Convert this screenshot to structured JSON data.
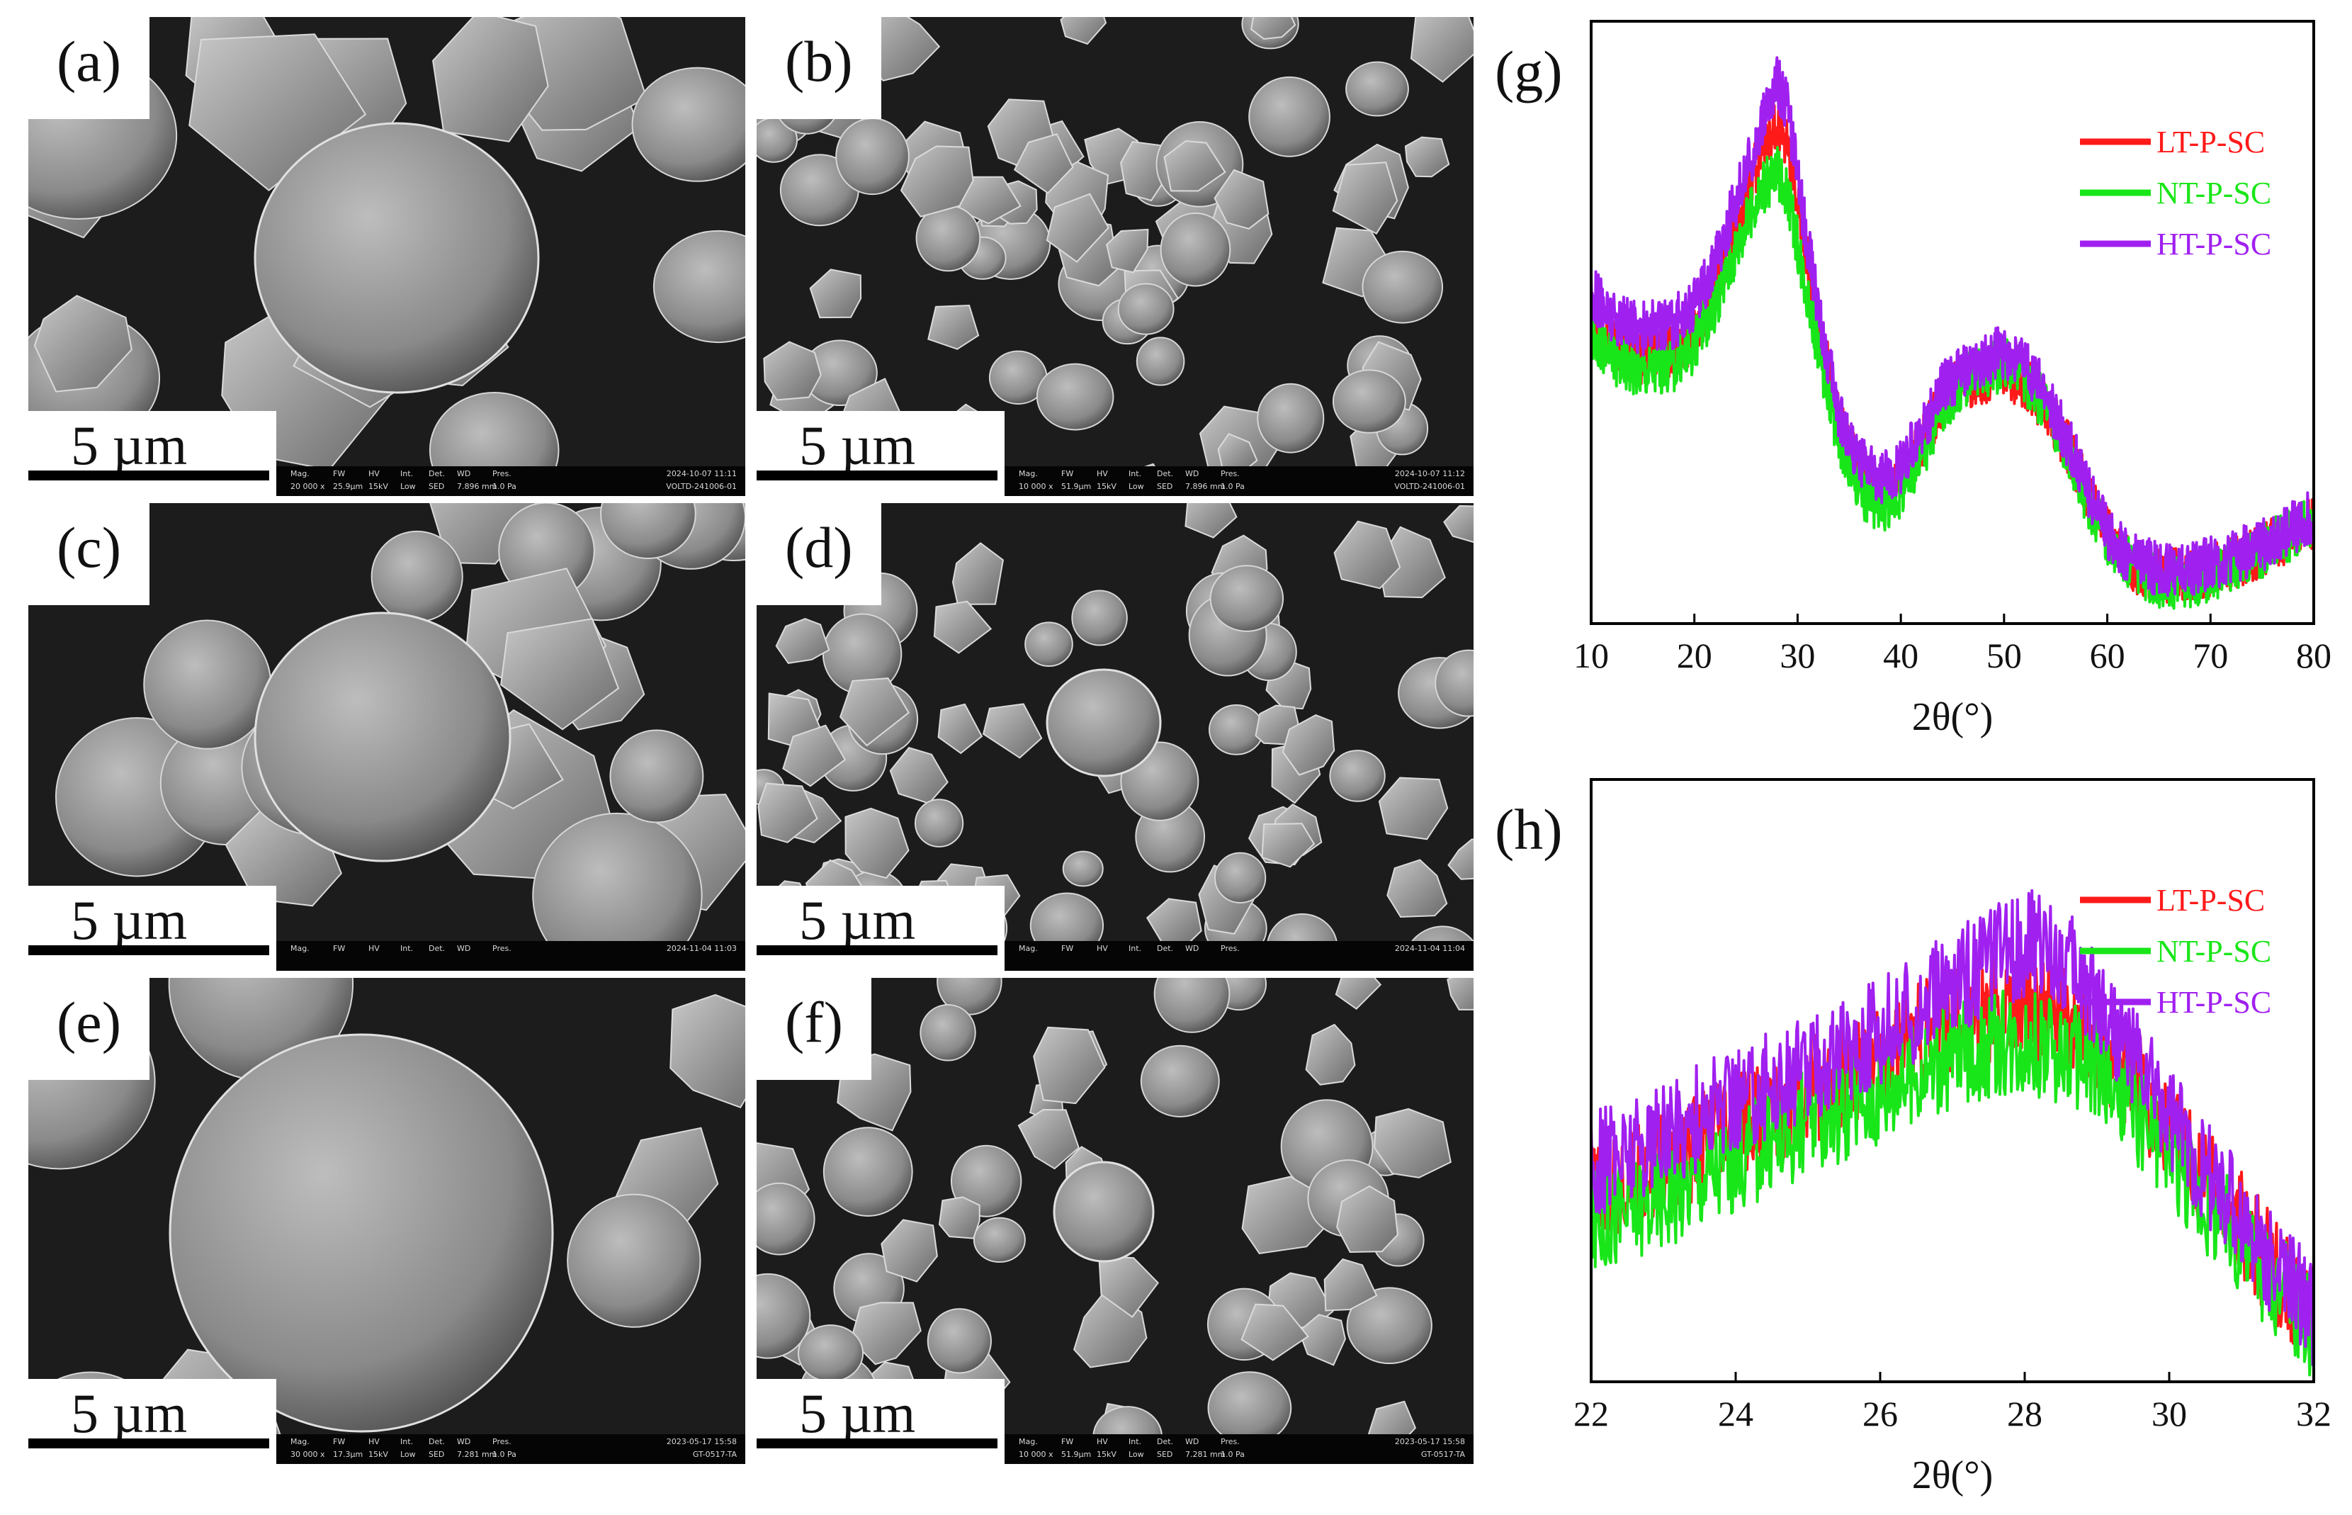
{
  "sem_panels": [
    {
      "label": "(a)",
      "scale": "5 µm",
      "info_labels": [
        "Mag.",
        "FW",
        "HV",
        "Int.",
        "Det.",
        "WD",
        "Pres."
      ],
      "info_values": [
        "20 000 x",
        "25.9µm",
        "15kV",
        "Low",
        "SED",
        "7.896 mm",
        "1.0 Pa"
      ],
      "timestamp": "2024-10-07 11:11",
      "sample_code": "VOLTD-241006-01"
    },
    {
      "label": "(b)",
      "scale": "5 µm",
      "info_labels": [
        "Mag.",
        "FW",
        "HV",
        "Int.",
        "Det.",
        "WD",
        "Pres."
      ],
      "info_values": [
        "10 000 x",
        "51.9µm",
        "15kV",
        "Low",
        "SED",
        "7.896 mm",
        "1.0 Pa"
      ],
      "timestamp": "2024-10-07 11:12",
      "sample_code": "VOLTD-241006-01"
    },
    {
      "label": "(c)",
      "scale": "5 µm",
      "info_labels": [
        "Mag.",
        "FW",
        "HV",
        "Int.",
        "Det.",
        "WD",
        "Pres."
      ],
      "info_values": [
        "",
        "",
        "",
        "",
        "",
        "",
        ""
      ],
      "timestamp": "2024-11-04 11:03",
      "sample_code": ""
    },
    {
      "label": "(d)",
      "scale": "5 µm",
      "info_labels": [
        "Mag.",
        "FW",
        "HV",
        "Int.",
        "Det.",
        "WD",
        "Pres."
      ],
      "info_values": [
        "",
        "",
        "",
        "",
        "",
        "",
        ""
      ],
      "timestamp": "2024-11-04 11:04",
      "sample_code": ""
    },
    {
      "label": "(e)",
      "scale": "5 µm",
      "info_labels": [
        "Mag.",
        "FW",
        "HV",
        "Int.",
        "Det.",
        "WD",
        "Pres."
      ],
      "info_values": [
        "30 000 x",
        "17.3µm",
        "15kV",
        "Low",
        "SED",
        "7.281 mm",
        "1.0 Pa"
      ],
      "timestamp": "2023-05-17 15:58",
      "sample_code": "GT-0517-TA"
    },
    {
      "label": "(f)",
      "scale": "5 µm",
      "info_labels": [
        "Mag.",
        "FW",
        "HV",
        "Int.",
        "Det.",
        "WD",
        "Pres."
      ],
      "info_values": [
        "10 000 x",
        "51.9µm",
        "15kV",
        "Low",
        "SED",
        "7.281 mm",
        "1.0 Pa"
      ],
      "timestamp": "2023-05-17 15:58",
      "sample_code": "GT-0517-TA"
    }
  ],
  "colors": {
    "lt": "#ff1a1a",
    "nt": "#19e619",
    "ht": "#a020f0"
  },
  "chart_data": [
    {
      "panel_label": "(g)",
      "type": "line",
      "xlabel": "2θ(°)",
      "xlim": [
        10,
        80
      ],
      "xticks": [
        10,
        20,
        30,
        40,
        50,
        60,
        70,
        80
      ],
      "legend": [
        "LT-P-SC",
        "NT-P-SC",
        "HT-P-SC"
      ],
      "legend_position": "top-right",
      "y_axis_labeled": false,
      "series": [
        {
          "name": "LT-P-SC",
          "x": [
            10,
            12,
            15,
            18,
            20,
            22,
            24,
            26,
            27,
            28,
            29,
            30,
            32,
            34,
            36,
            38,
            40,
            42,
            44,
            46,
            48,
            50,
            52,
            54,
            56,
            58,
            60,
            62,
            65,
            68,
            70,
            72,
            75,
            78,
            80
          ],
          "y": [
            0.5,
            0.46,
            0.44,
            0.45,
            0.48,
            0.56,
            0.66,
            0.76,
            0.8,
            0.83,
            0.8,
            0.7,
            0.5,
            0.33,
            0.25,
            0.22,
            0.24,
            0.3,
            0.37,
            0.4,
            0.41,
            0.42,
            0.4,
            0.36,
            0.3,
            0.22,
            0.15,
            0.1,
            0.08,
            0.08,
            0.09,
            0.1,
            0.12,
            0.15,
            0.17
          ]
        },
        {
          "name": "NT-P-SC",
          "x": [
            10,
            12,
            15,
            18,
            20,
            22,
            24,
            26,
            27,
            28,
            29,
            30,
            32,
            34,
            36,
            38,
            40,
            42,
            44,
            46,
            48,
            50,
            52,
            54,
            56,
            58,
            60,
            62,
            65,
            68,
            70,
            72,
            75,
            78,
            80
          ],
          "y": [
            0.48,
            0.44,
            0.42,
            0.43,
            0.46,
            0.53,
            0.62,
            0.7,
            0.73,
            0.75,
            0.72,
            0.63,
            0.46,
            0.3,
            0.22,
            0.19,
            0.22,
            0.28,
            0.36,
            0.4,
            0.42,
            0.43,
            0.41,
            0.36,
            0.29,
            0.21,
            0.14,
            0.1,
            0.07,
            0.07,
            0.08,
            0.1,
            0.12,
            0.15,
            0.17
          ]
        },
        {
          "name": "HT-P-SC",
          "x": [
            10,
            12,
            15,
            18,
            20,
            22,
            24,
            26,
            27,
            28,
            29,
            30,
            32,
            34,
            36,
            38,
            40,
            42,
            44,
            46,
            48,
            50,
            52,
            54,
            56,
            58,
            60,
            62,
            65,
            68,
            70,
            72,
            75,
            78,
            80
          ],
          "y": [
            0.55,
            0.51,
            0.49,
            0.5,
            0.53,
            0.6,
            0.7,
            0.8,
            0.85,
            0.9,
            0.86,
            0.74,
            0.52,
            0.35,
            0.27,
            0.24,
            0.26,
            0.32,
            0.39,
            0.42,
            0.44,
            0.45,
            0.43,
            0.38,
            0.31,
            0.23,
            0.15,
            0.11,
            0.09,
            0.09,
            0.1,
            0.11,
            0.13,
            0.16,
            0.18
          ]
        }
      ]
    },
    {
      "panel_label": "(h)",
      "type": "line",
      "xlabel": "2θ(°)",
      "xlim": [
        22,
        32
      ],
      "xticks": [
        22,
        24,
        26,
        28,
        30,
        32
      ],
      "legend": [
        "LT-P-SC",
        "NT-P-SC",
        "HT-P-SC"
      ],
      "legend_position": "top-right",
      "y_axis_labeled": false,
      "series": [
        {
          "name": "LT-P-SC",
          "x": [
            22,
            23,
            24,
            25,
            26,
            26.5,
            27,
            27.5,
            28,
            28.5,
            29,
            29.5,
            30,
            30.5,
            31,
            31.5,
            32
          ],
          "y": [
            0.3,
            0.36,
            0.42,
            0.48,
            0.54,
            0.57,
            0.6,
            0.62,
            0.62,
            0.6,
            0.56,
            0.5,
            0.42,
            0.34,
            0.26,
            0.18,
            0.1
          ]
        },
        {
          "name": "NT-P-SC",
          "x": [
            22,
            23,
            24,
            25,
            26,
            26.5,
            27,
            27.5,
            28,
            28.5,
            29,
            29.5,
            30,
            30.5,
            31,
            31.5,
            32
          ],
          "y": [
            0.26,
            0.31,
            0.37,
            0.43,
            0.48,
            0.51,
            0.54,
            0.56,
            0.57,
            0.55,
            0.51,
            0.45,
            0.38,
            0.3,
            0.23,
            0.16,
            0.09
          ]
        },
        {
          "name": "HT-P-SC",
          "x": [
            22,
            23,
            24,
            25,
            26,
            26.5,
            27,
            27.5,
            28,
            28.5,
            29,
            29.5,
            30,
            30.5,
            31,
            31.5,
            32
          ],
          "y": [
            0.36,
            0.41,
            0.47,
            0.52,
            0.58,
            0.62,
            0.66,
            0.7,
            0.73,
            0.71,
            0.64,
            0.54,
            0.44,
            0.35,
            0.27,
            0.19,
            0.11
          ]
        }
      ]
    }
  ]
}
